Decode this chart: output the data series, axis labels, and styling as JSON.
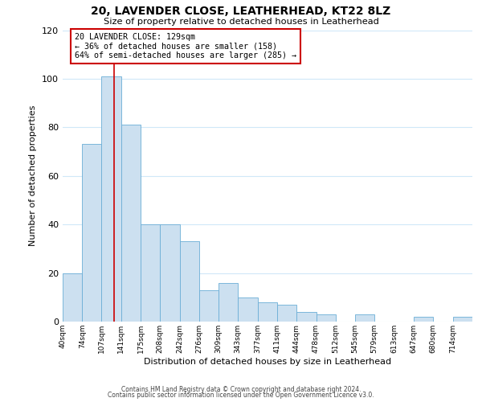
{
  "title": "20, LAVENDER CLOSE, LEATHERHEAD, KT22 8LZ",
  "subtitle": "Size of property relative to detached houses in Leatherhead",
  "xlabel": "Distribution of detached houses by size in Leatherhead",
  "ylabel": "Number of detached properties",
  "bar_labels": [
    "40sqm",
    "74sqm",
    "107sqm",
    "141sqm",
    "175sqm",
    "208sqm",
    "242sqm",
    "276sqm",
    "309sqm",
    "343sqm",
    "377sqm",
    "411sqm",
    "444sqm",
    "478sqm",
    "512sqm",
    "545sqm",
    "579sqm",
    "613sqm",
    "647sqm",
    "680sqm",
    "714sqm"
  ],
  "bar_heights": [
    20,
    73,
    101,
    81,
    40,
    40,
    33,
    13,
    16,
    10,
    8,
    7,
    4,
    3,
    0,
    3,
    0,
    0,
    2,
    0,
    2
  ],
  "bar_color": "#cce0f0",
  "bar_edge_color": "#6baed6",
  "grid_color": "#d0e8f8",
  "background_color": "#ffffff",
  "annotation_text": "20 LAVENDER CLOSE: 129sqm\n← 36% of detached houses are smaller (158)\n64% of semi-detached houses are larger (285) →",
  "annotation_box_color": "#ffffff",
  "annotation_box_edge_color": "#cc0000",
  "reference_line_value": 129,
  "reference_line_color": "#cc0000",
  "ylim": [
    0,
    120
  ],
  "yticks": [
    0,
    20,
    40,
    60,
    80,
    100,
    120
  ],
  "footer_line1": "Contains HM Land Registry data © Crown copyright and database right 2024.",
  "footer_line2": "Contains public sector information licensed under the Open Government Licence v3.0.",
  "bin_edges": [
    40,
    74,
    107,
    141,
    175,
    208,
    242,
    276,
    309,
    343,
    377,
    411,
    444,
    478,
    512,
    545,
    579,
    613,
    647,
    680,
    714,
    748
  ]
}
